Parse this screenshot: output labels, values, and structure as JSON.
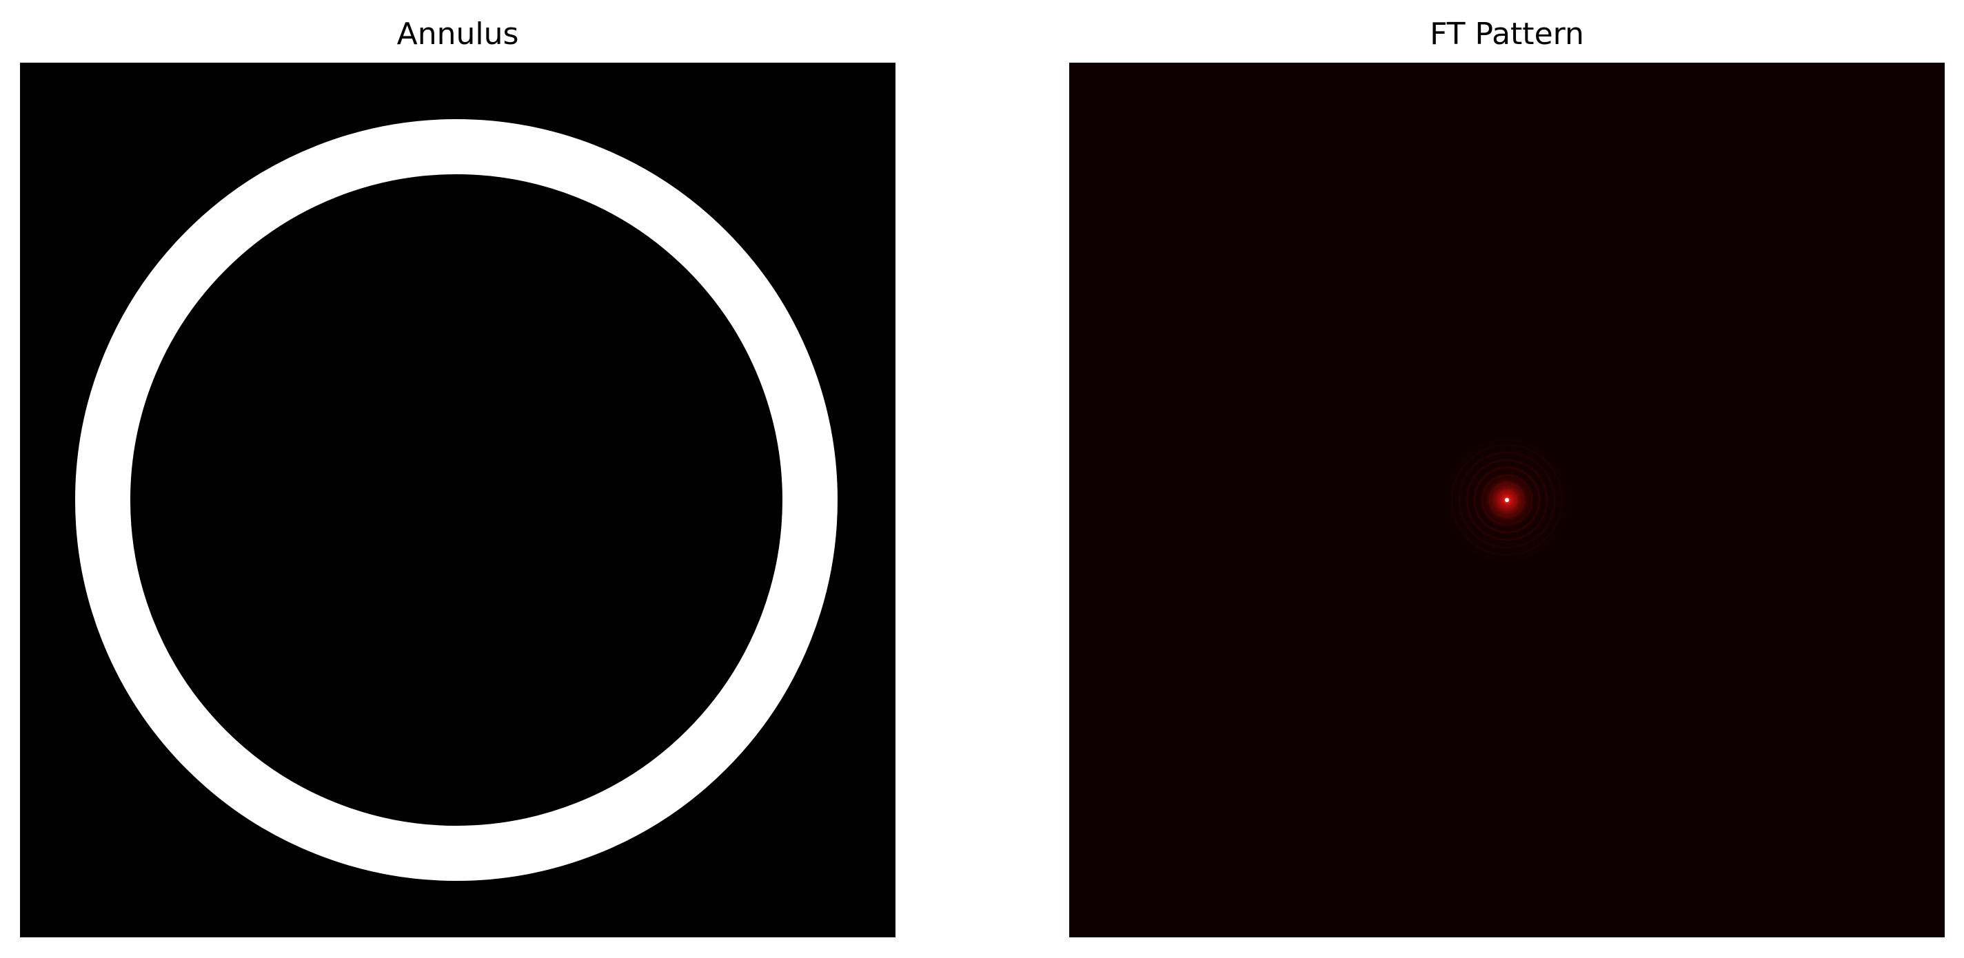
{
  "panels": {
    "left": {
      "title": "Annulus",
      "background_color": "#000000",
      "ring_color": "#ffffff"
    },
    "right": {
      "title": "FT Pattern",
      "colormap": "hot",
      "background_color": "#0c0000",
      "center_color": "#ffffff",
      "glow_color": "#d01010"
    }
  }
}
